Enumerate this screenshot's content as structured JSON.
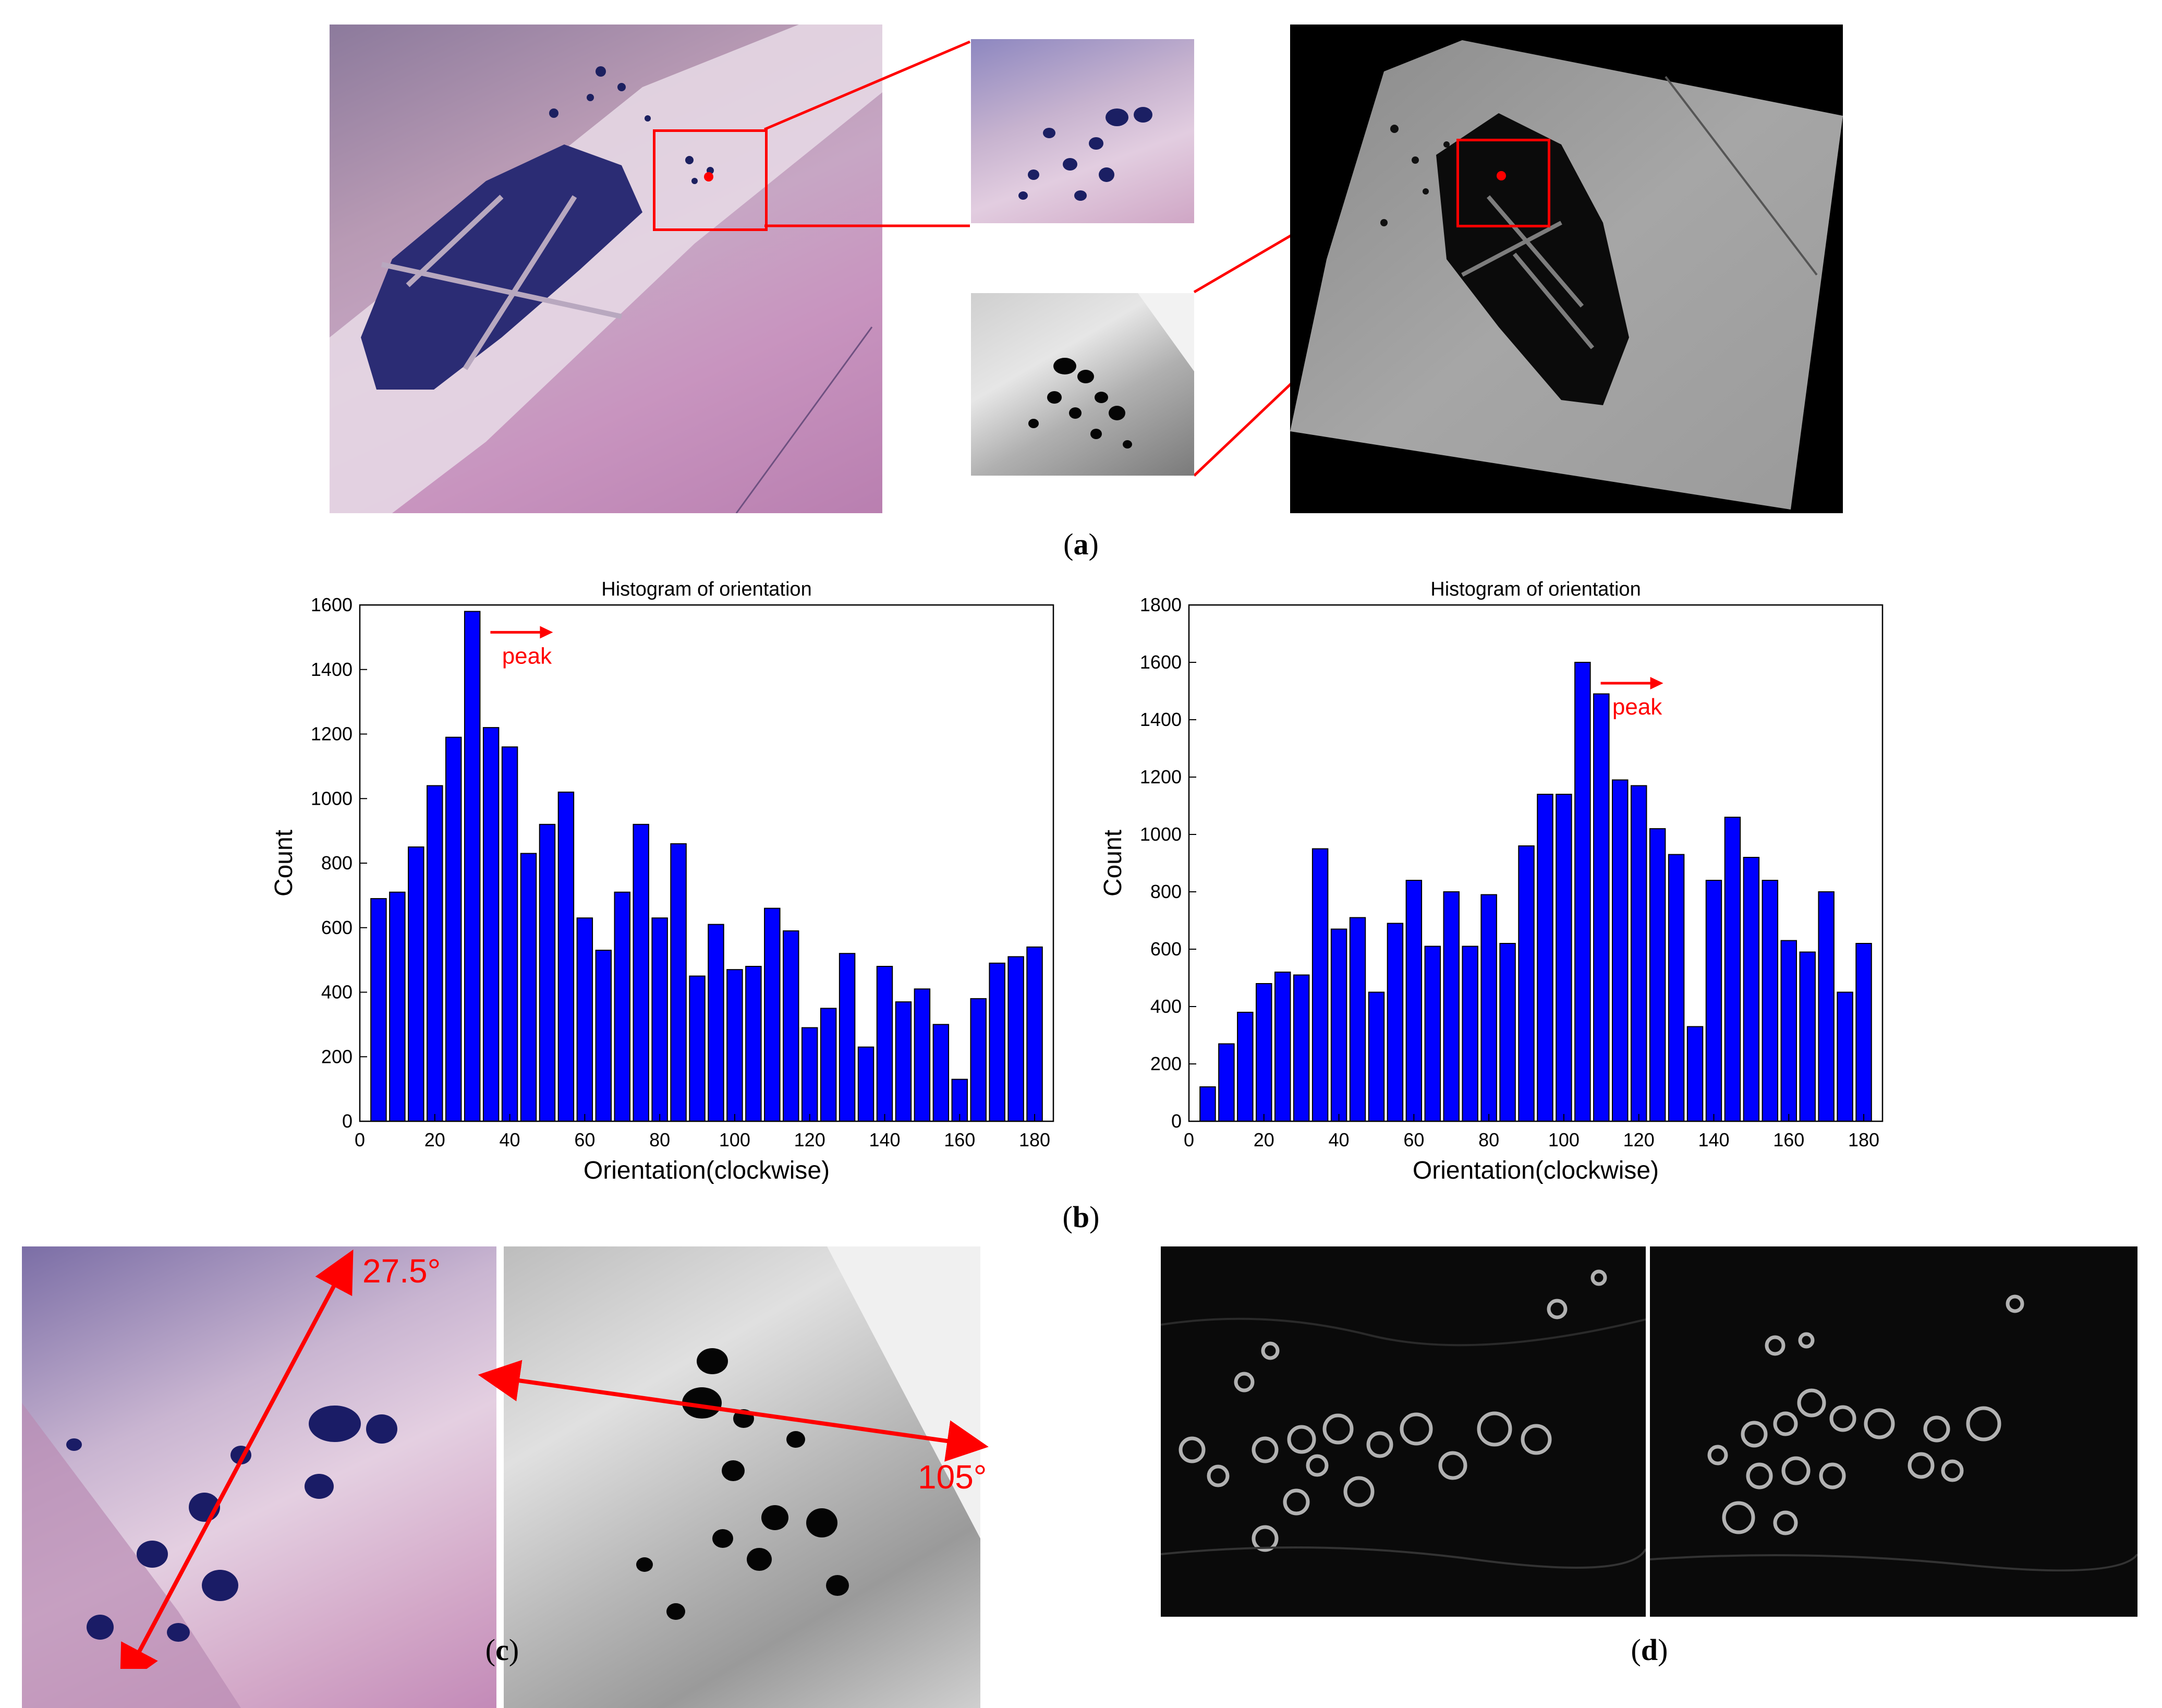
{
  "figure": {
    "captions": {
      "a": "a",
      "b": "b",
      "c": "c",
      "d": "d"
    },
    "panel_c": {
      "left_angle": "27.5°",
      "right_angle": "105°"
    }
  },
  "colors": {
    "bar": "#0000ff",
    "annotation": "#ff0000",
    "overlay": "#ff0000"
  },
  "chart_data": [
    {
      "type": "bar",
      "title": "Histogram of orientation",
      "xlabel": "Orientation(clockwise)",
      "ylabel": "Count",
      "xlim": [
        0,
        185
      ],
      "ylim": [
        0,
        1600
      ],
      "xticks": [
        0,
        20,
        40,
        60,
        80,
        100,
        120,
        140,
        160,
        180
      ],
      "yticks": [
        0,
        200,
        400,
        600,
        800,
        1000,
        1200,
        1400,
        1600
      ],
      "x": [
        5,
        10,
        15,
        20,
        25,
        30,
        35,
        40,
        45,
        50,
        55,
        60,
        65,
        70,
        75,
        80,
        85,
        90,
        95,
        100,
        105,
        110,
        115,
        120,
        125,
        130,
        135,
        140,
        145,
        150,
        155,
        160,
        165,
        170,
        175,
        180
      ],
      "values": [
        690,
        710,
        850,
        1040,
        1190,
        1580,
        1220,
        1160,
        830,
        920,
        1020,
        630,
        530,
        710,
        920,
        630,
        860,
        450,
        610,
        470,
        480,
        660,
        590,
        290,
        350,
        520,
        230,
        480,
        370,
        410,
        300,
        130,
        380,
        490,
        510,
        540
      ],
      "annotation": {
        "text": "peak",
        "x": 30
      }
    },
    {
      "type": "bar",
      "title": "Histogram of orientation",
      "xlabel": "Orientation(clockwise)",
      "ylabel": "Count",
      "xlim": [
        0,
        185
      ],
      "ylim": [
        0,
        1800
      ],
      "xticks": [
        0,
        20,
        40,
        60,
        80,
        100,
        120,
        140,
        160,
        180
      ],
      "yticks": [
        0,
        200,
        400,
        600,
        800,
        1000,
        1200,
        1400,
        1600,
        1800
      ],
      "x": [
        5,
        10,
        15,
        20,
        25,
        30,
        35,
        40,
        45,
        50,
        55,
        60,
        65,
        70,
        75,
        80,
        85,
        90,
        95,
        100,
        105,
        110,
        115,
        120,
        125,
        130,
        135,
        140,
        145,
        150,
        155,
        160,
        165,
        170,
        175,
        180
      ],
      "values": [
        120,
        270,
        380,
        480,
        520,
        510,
        950,
        670,
        710,
        450,
        690,
        840,
        610,
        800,
        610,
        790,
        620,
        960,
        1140,
        1140,
        1600,
        1490,
        1190,
        1170,
        1020,
        930,
        330,
        840,
        1060,
        920,
        840,
        630,
        590,
        800,
        450,
        620
      ],
      "annotation": {
        "text": "peak",
        "x": 105
      }
    }
  ]
}
